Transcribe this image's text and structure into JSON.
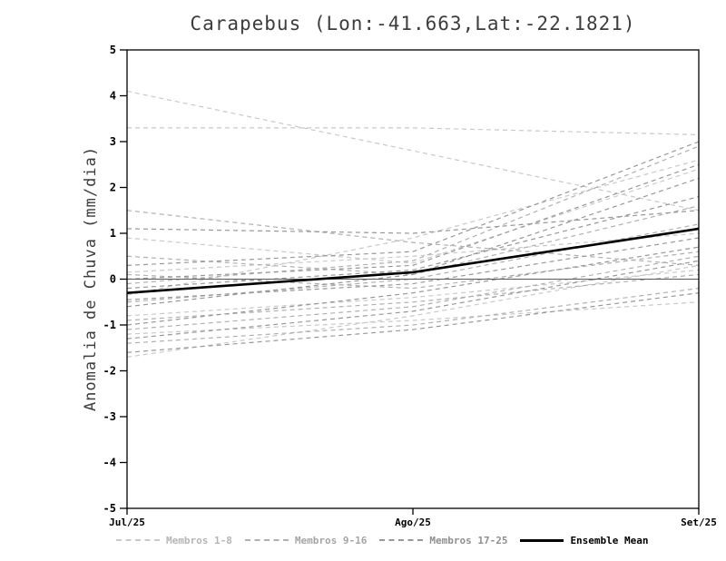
{
  "chart_data": {
    "type": "line",
    "title": "Carapebus (Lon:-41.663,Lat:-22.1821)",
    "ylabel": "Anomalia de Chuva (mm/dia)",
    "x_categories": [
      "Jul/25",
      "Ago/25",
      "Set/25"
    ],
    "ylim": [
      -5,
      5
    ],
    "yticks": [
      -5,
      -4,
      -3,
      -2,
      -1,
      0,
      1,
      2,
      3,
      4,
      5
    ],
    "grid": false,
    "zero_line": {
      "value": 0,
      "color": "#dd2222"
    },
    "groups": [
      {
        "name": "Membros 1-8",
        "color": "#c9c9c9"
      },
      {
        "name": "Membros 9-16",
        "color": "#b0b0b0"
      },
      {
        "name": "Membros 17-25",
        "color": "#989898"
      }
    ],
    "members": [
      {
        "group": 0,
        "values": [
          4.1,
          2.8,
          1.5
        ]
      },
      {
        "group": 0,
        "values": [
          3.3,
          3.3,
          3.15
        ]
      },
      {
        "group": 0,
        "values": [
          0.9,
          0.35,
          2.4
        ]
      },
      {
        "group": 0,
        "values": [
          0.15,
          0.5,
          1.0
        ]
      },
      {
        "group": 0,
        "values": [
          -0.35,
          0.9,
          2.6
        ]
      },
      {
        "group": 0,
        "values": [
          -0.8,
          -0.4,
          0.2
        ]
      },
      {
        "group": 0,
        "values": [
          -1.2,
          -0.9,
          -0.5
        ]
      },
      {
        "group": 0,
        "values": [
          -1.7,
          -0.8,
          0.3
        ]
      },
      {
        "group": 1,
        "values": [
          1.5,
          0.8,
          0.3
        ]
      },
      {
        "group": 1,
        "values": [
          0.5,
          0.1,
          1.6
        ]
      },
      {
        "group": 1,
        "values": [
          0.1,
          -0.2,
          0.6
        ]
      },
      {
        "group": 1,
        "values": [
          -0.1,
          0.4,
          2.9
        ]
      },
      {
        "group": 1,
        "values": [
          -0.5,
          0.0,
          1.2
        ]
      },
      {
        "group": 1,
        "values": [
          -0.9,
          -0.5,
          0.1
        ]
      },
      {
        "group": 1,
        "values": [
          -1.1,
          -0.6,
          0.5
        ]
      },
      {
        "group": 1,
        "values": [
          -1.4,
          -1.0,
          -0.2
        ]
      },
      {
        "group": 2,
        "values": [
          1.1,
          1.0,
          1.5
        ]
      },
      {
        "group": 2,
        "values": [
          0.3,
          0.6,
          3.0
        ]
      },
      {
        "group": 2,
        "values": [
          0.0,
          0.3,
          2.5
        ]
      },
      {
        "group": 2,
        "values": [
          -0.2,
          0.2,
          1.8
        ]
      },
      {
        "group": 2,
        "values": [
          -0.45,
          -0.1,
          0.9
        ]
      },
      {
        "group": 2,
        "values": [
          -0.6,
          0.1,
          2.2
        ]
      },
      {
        "group": 2,
        "values": [
          -1.0,
          -0.3,
          0.7
        ]
      },
      {
        "group": 2,
        "values": [
          -1.3,
          -0.7,
          0.4
        ]
      },
      {
        "group": 2,
        "values": [
          -1.6,
          -1.1,
          -0.3
        ]
      }
    ],
    "mean": {
      "name": "Ensemble Mean",
      "color": "#000000",
      "values": [
        -0.3,
        0.15,
        1.1
      ]
    },
    "legend": [
      {
        "label": "Membros 1-8",
        "color": "#c9c9c9",
        "text_color": "#b5b5b5",
        "style": "dashed"
      },
      {
        "label": "Membros 9-16",
        "color": "#b0b0b0",
        "text_color": "#a5a5a5",
        "style": "dashed"
      },
      {
        "label": "Membros 17-25",
        "color": "#989898",
        "text_color": "#8f8f8f",
        "style": "dashed"
      },
      {
        "label": "Ensemble Mean",
        "color": "#000000",
        "text_color": "#000000",
        "style": "solid"
      }
    ]
  }
}
